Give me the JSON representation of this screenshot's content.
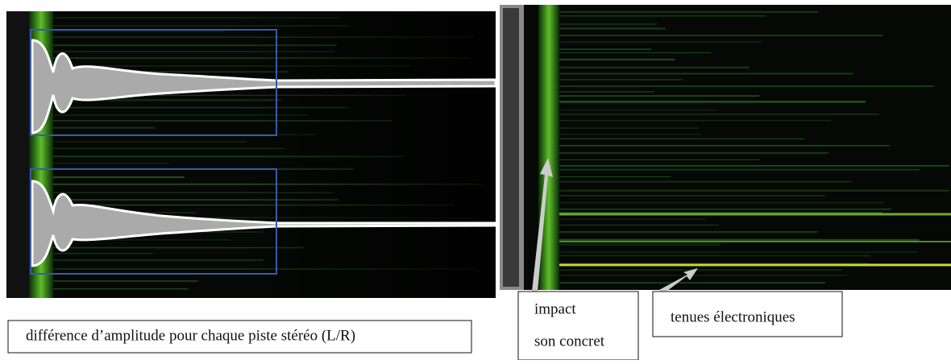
{
  "captions": {
    "amplitude": "différence d’amplitude pour chaque piste stéréo (L/R)",
    "impact": "impact",
    "concrete": "son concret",
    "electronic": "tenues électroniques"
  }
}
